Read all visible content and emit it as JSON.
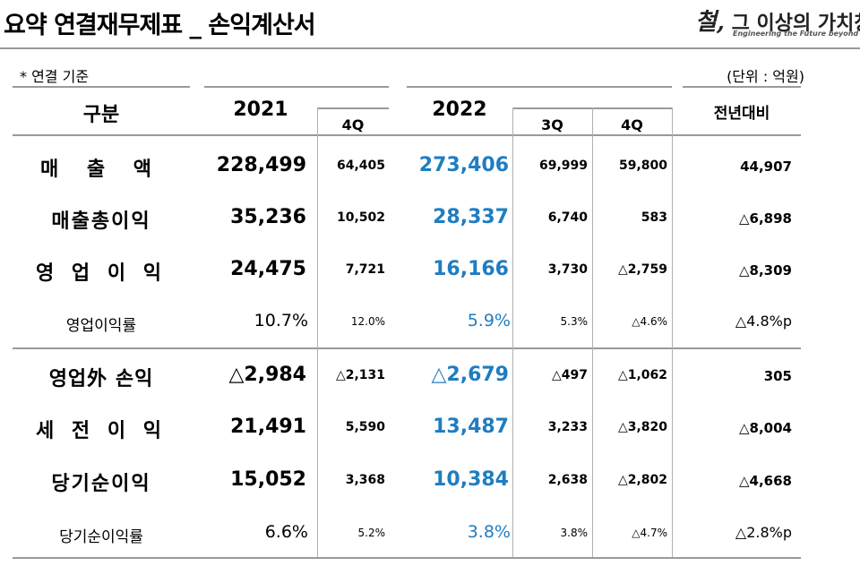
{
  "title": "요약 연결재무제표 _ 손익계산서",
  "logo": {
    "first_char": "철,",
    "main": " 그 이상의 가치창조",
    "tagline": "Engineering the Future beyond Steel"
  },
  "note": "* 연결 기준",
  "unit": "(단위 : 억원)",
  "headers": {
    "category": "구분",
    "y2021": "2021",
    "y2021_q4": "4Q",
    "y2022": "2022",
    "y2022_q3": "3Q",
    "y2022_q4": "4Q",
    "yoy": "전년대비"
  },
  "rows": [
    {
      "label": "매  출  액",
      "v2021": "228,499",
      "v2021_q4": "64,405",
      "v2022": "273,406",
      "v2022_q3": "69,999",
      "v2022_q4": "59,800",
      "yoy": "44,907"
    },
    {
      "label": "매출총이익",
      "v2021": "35,236",
      "v2021_q4": "10,502",
      "v2022": "28,337",
      "v2022_q3": "6,740",
      "v2022_q4": "583",
      "yoy": "△6,898"
    },
    {
      "label": "영 업 이 익",
      "v2021": "24,475",
      "v2021_q4": "7,721",
      "v2022": "16,166",
      "v2022_q3": "3,730",
      "v2022_q4": "△2,759",
      "yoy": "△8,309"
    },
    {
      "label": "영업이익률",
      "v2021": "10.7%",
      "v2021_q4": "12.0%",
      "v2022": "5.9%",
      "v2022_q3": "5.3%",
      "v2022_q4": "△4.6%",
      "yoy": "△4.8%p"
    },
    {
      "label": "영업外 손익",
      "v2021": "△2,984",
      "v2021_q4": "△2,131",
      "v2022": "△2,679",
      "v2022_q3": "△497",
      "v2022_q4": "△1,062",
      "yoy": "305"
    },
    {
      "label": "세 전 이 익",
      "v2021": "21,491",
      "v2021_q4": "5,590",
      "v2022": "13,487",
      "v2022_q3": "3,233",
      "v2022_q4": "△3,820",
      "yoy": "△8,004"
    },
    {
      "label": "당기순이익",
      "v2021": "15,052",
      "v2021_q4": "3,368",
      "v2022": "10,384",
      "v2022_q3": "2,638",
      "v2022_q4": "△2,802",
      "yoy": "△4,668"
    },
    {
      "label": "당기순이익률",
      "v2021": "6.6%",
      "v2021_q4": "5.2%",
      "v2022": "3.8%",
      "v2022_q3": "3.8%",
      "v2022_q4": "△4.7%",
      "yoy": "△2.8%p"
    }
  ]
}
